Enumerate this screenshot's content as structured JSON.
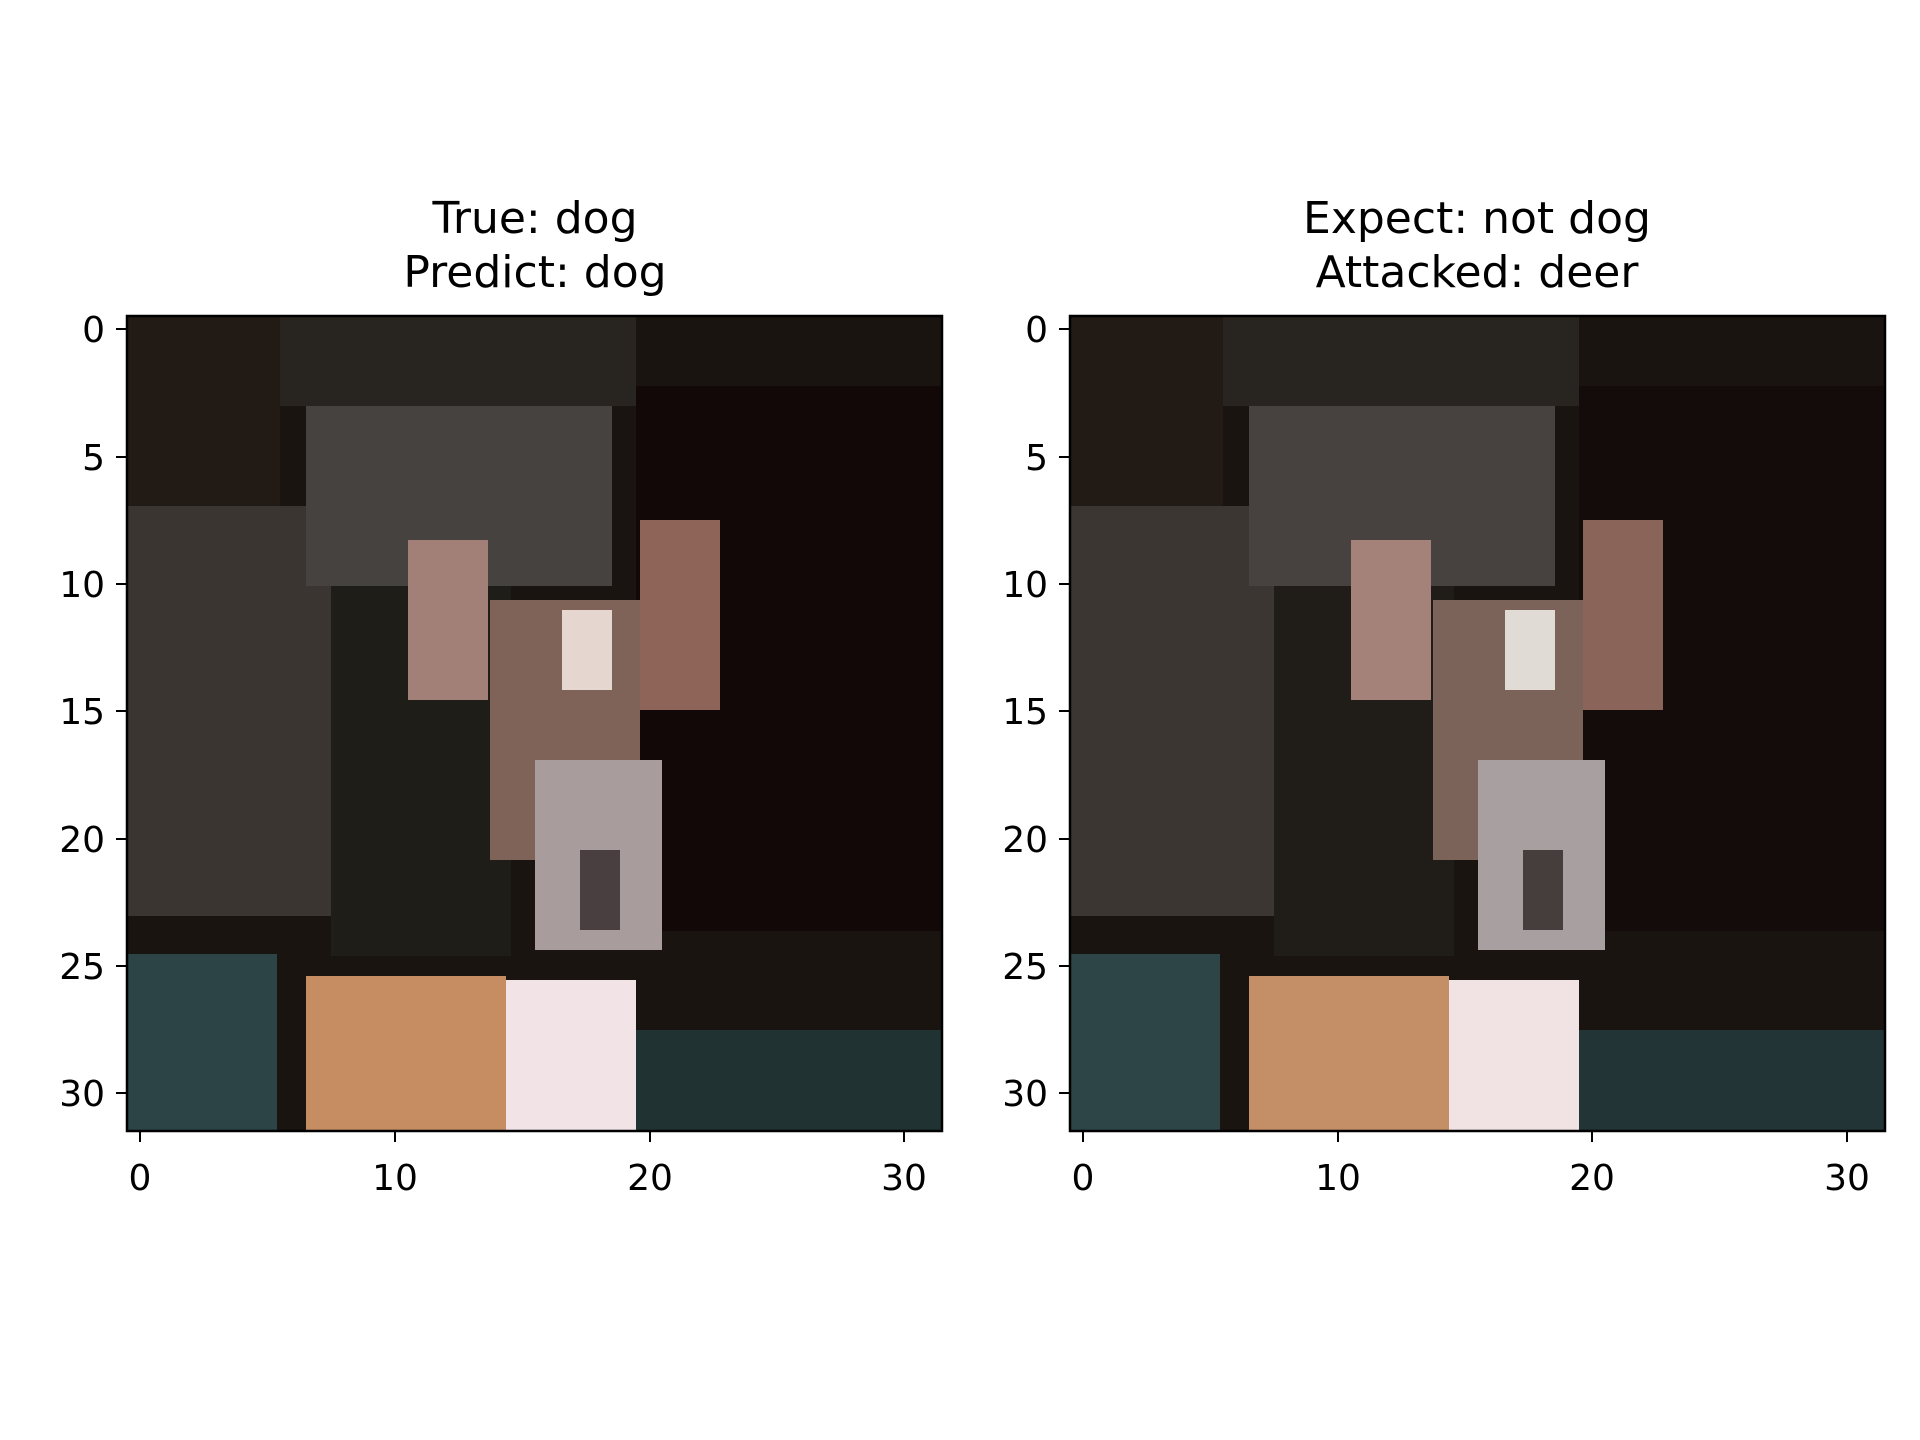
{
  "chart_data": [
    {
      "type": "heatmap",
      "title_lines": [
        "True: dog",
        "Predict: dog"
      ],
      "xlabel": "",
      "ylabel": "",
      "xlim": [
        -0.5,
        31.5
      ],
      "ylim": [
        31.5,
        -0.5
      ],
      "xticks": [
        0,
        10,
        20,
        30
      ],
      "yticks": [
        0,
        5,
        10,
        15,
        20,
        25,
        30
      ],
      "grid": false
    },
    {
      "type": "heatmap",
      "title_lines": [
        "Expect: not dog",
        "Attacked: deer"
      ],
      "xlabel": "",
      "ylabel": "",
      "xlim": [
        -0.5,
        31.5
      ],
      "ylim": [
        31.5,
        -0.5
      ],
      "xticks": [
        0,
        10,
        20,
        30
      ],
      "yticks": [
        0,
        5,
        10,
        15,
        20,
        25,
        30
      ],
      "grid": false
    }
  ]
}
